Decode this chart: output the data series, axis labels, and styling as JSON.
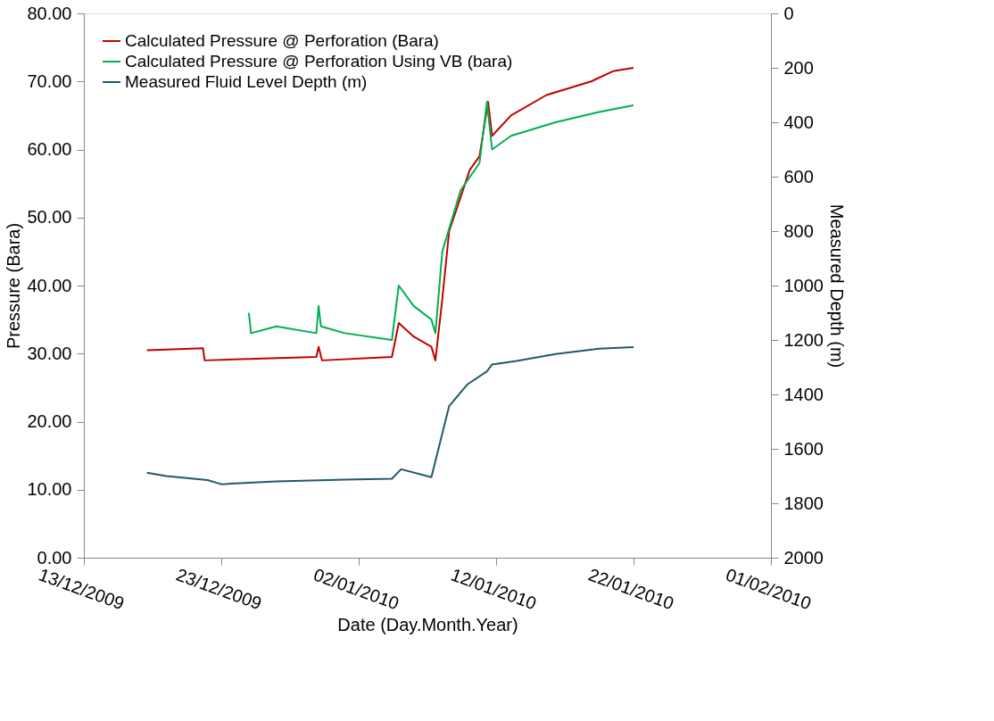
{
  "chart_data": {
    "type": "line",
    "xlabel": "Date (Day.Month.Year)",
    "ylabel": "Pressure (Bara)",
    "y2label": "Measured Depth (m)",
    "xlim": [
      "2009-12-13",
      "2010-02-01"
    ],
    "xticks": [
      {
        "value": "2009-12-13",
        "label": "13/12/2009"
      },
      {
        "value": "2009-12-23",
        "label": "23/12/2009"
      },
      {
        "value": "2010-01-02",
        "label": "02/01/2010"
      },
      {
        "value": "2010-01-12",
        "label": "12/01/2010"
      },
      {
        "value": "2010-01-22",
        "label": "22/01/2010"
      },
      {
        "value": "2010-02-01",
        "label": "01/02/2010"
      }
    ],
    "ylim": [
      0,
      80
    ],
    "yticks": [
      {
        "value": 0,
        "label": "0.00"
      },
      {
        "value": 10,
        "label": "10.00"
      },
      {
        "value": 20,
        "label": "20.00"
      },
      {
        "value": 30,
        "label": "30.00"
      },
      {
        "value": 40,
        "label": "40.00"
      },
      {
        "value": 50,
        "label": "50.00"
      },
      {
        "value": 60,
        "label": "60.00"
      },
      {
        "value": 70,
        "label": "70.00"
      },
      {
        "value": 80,
        "label": "80.00"
      }
    ],
    "y2lim": [
      2000,
      0
    ],
    "y2ticks": [
      0,
      200,
      400,
      600,
      800,
      1000,
      1200,
      1400,
      1600,
      1800,
      2000
    ],
    "grid": false,
    "legend": "top left",
    "marker": "none",
    "line_style": "solid",
    "series": [
      {
        "name": "Calculated Pressure @ Perforation (Bara)",
        "color": "#c00000",
        "x": [
          "2009-12-17T14:00",
          "2009-12-19T00:00",
          "2009-12-21T16:00",
          "2009-12-21T19:00",
          "2009-12-25T00:00",
          "2009-12-29T22:00",
          "2009-12-30T02:00",
          "2009-12-30T08:00",
          "2010-01-04T10:00",
          "2010-01-04T22:00",
          "2010-01-06T00:00",
          "2010-01-07T07:00",
          "2010-01-07T14:00",
          "2010-01-08T02:00",
          "2010-01-08T14:00",
          "2010-01-09T10:00",
          "2010-01-10T02:00",
          "2010-01-10T19:00",
          "2010-01-11T10:00",
          "2010-01-11T17:00",
          "2010-01-13T02:00",
          "2010-01-15T16:00",
          "2010-01-18T22:00",
          "2010-01-20T12:00",
          "2010-01-22T00:00"
        ],
        "values": [
          30.5,
          30.6,
          30.8,
          29.0,
          29.2,
          29.5,
          31.0,
          29.0,
          29.5,
          34.5,
          32.5,
          31.0,
          29.0,
          38,
          48,
          53,
          57,
          59,
          67,
          62,
          65,
          68,
          70,
          71.5,
          72
        ]
      },
      {
        "name": "Calculated Pressure @ Perforation Using VB (bara)",
        "color": "#00b050",
        "x": [
          "2009-12-25T00:00",
          "2009-12-25T04:00",
          "2009-12-27T00:00",
          "2009-12-29T22:00",
          "2009-12-30T02:00",
          "2009-12-30T06:00",
          "2010-01-01T00:00",
          "2010-01-04T10:00",
          "2010-01-04T22:00",
          "2010-01-06T00:00",
          "2010-01-07T07:00",
          "2010-01-07T14:00",
          "2010-01-08T02:00",
          "2010-01-09T10:00",
          "2010-01-10T19:00",
          "2010-01-11T08:00",
          "2010-01-11T17:00",
          "2010-01-13T02:00",
          "2010-01-16T08:00",
          "2010-01-19T12:00",
          "2010-01-22T00:00"
        ],
        "values": [
          36,
          33,
          34,
          33,
          37,
          34,
          33,
          32,
          40,
          37,
          35,
          33,
          45,
          54,
          58,
          67,
          60,
          62,
          64,
          65.5,
          66.5
        ]
      },
      {
        "name": "Measured Fluid Level Depth (m)",
        "color": "#215968",
        "axis": "y2",
        "x": [
          "2009-12-17T14:00",
          "2009-12-19T00:00",
          "2009-12-22T00:00",
          "2009-12-23T00:00",
          "2009-12-27T00:00",
          "2010-01-01T00:00",
          "2010-01-04T10:00",
          "2010-01-05T02:00",
          "2010-01-07T07:00",
          "2010-01-08T14:00",
          "2010-01-09T22:00",
          "2010-01-11T08:00",
          "2010-01-11T17:00",
          "2010-01-13T12:00",
          "2010-01-16T08:00",
          "2010-01-19T12:00",
          "2010-01-22T00:00"
        ],
        "values": [
          1688,
          1700,
          1715,
          1730,
          1720,
          1713,
          1710,
          1675,
          1704,
          1443,
          1363,
          1315,
          1290,
          1277,
          1252,
          1232,
          1226
        ]
      }
    ]
  }
}
